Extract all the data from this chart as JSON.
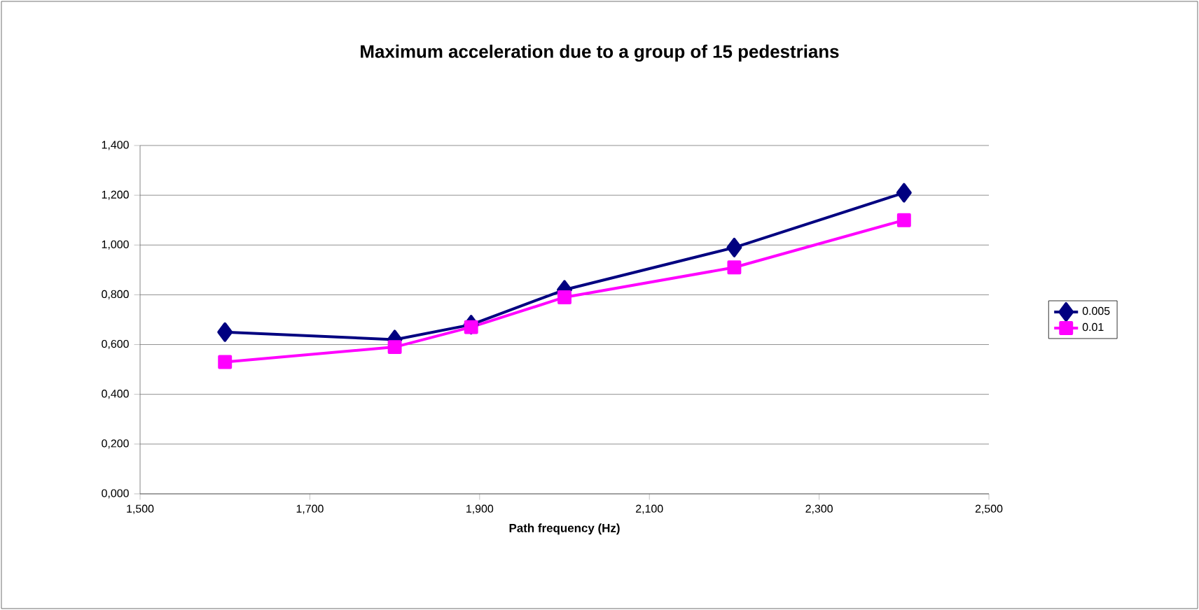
{
  "chart_data": {
    "type": "line",
    "title": "Maximum acceleration due to a group of 15 pedestrians",
    "xlabel": "Path frequency (Hz)",
    "series": [
      {
        "name": "0.005",
        "color": "#000080",
        "marker": "diamond",
        "x": [
          1.6,
          1.8,
          1.89,
          2.0,
          2.2,
          2.4
        ],
        "values": [
          0.65,
          0.62,
          0.68,
          0.82,
          0.99,
          1.21
        ]
      },
      {
        "name": "0.01",
        "color": "#ff00ff",
        "marker": "square",
        "x": [
          1.6,
          1.8,
          1.89,
          2.0,
          2.2,
          2.4
        ],
        "values": [
          0.53,
          0.59,
          0.67,
          0.79,
          0.91,
          1.1
        ]
      }
    ],
    "xlim": [
      1.5,
      2.5
    ],
    "xticks": [
      {
        "value": 1.5,
        "label": "1,500"
      },
      {
        "value": 1.7,
        "label": "1,700"
      },
      {
        "value": 1.9,
        "label": "1,900"
      },
      {
        "value": 2.1,
        "label": "2,100"
      },
      {
        "value": 2.3,
        "label": "2,300"
      },
      {
        "value": 2.5,
        "label": "2,500"
      }
    ],
    "ylim": [
      0,
      1.4
    ],
    "yticks": [
      {
        "value": 0,
        "label": "0,000"
      },
      {
        "value": 0.2,
        "label": "0,200"
      },
      {
        "value": 0.4,
        "label": "0,400"
      },
      {
        "value": 0.6,
        "label": "0,600"
      },
      {
        "value": 0.8,
        "label": "0,800"
      },
      {
        "value": 1.0,
        "label": "1,000"
      },
      {
        "value": 1.2,
        "label": "1,200"
      },
      {
        "value": 1.4,
        "label": "1,400"
      }
    ],
    "grid": "y",
    "legend": "right",
    "line_style": "solid"
  }
}
